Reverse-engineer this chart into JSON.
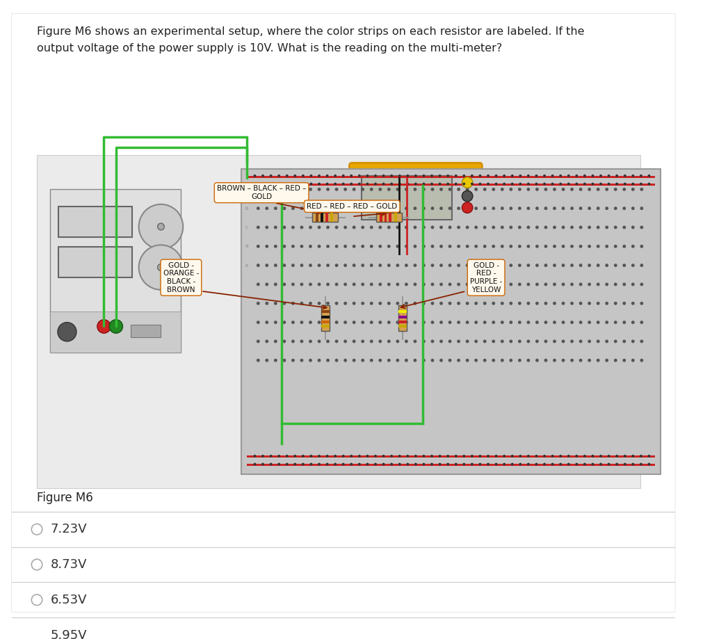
{
  "bg_color": "#ffffff",
  "question_text_line1": "Figure M6 shows an experimental setup, where the color strips on each resistor are labeled. If the",
  "question_text_line2": "output voltage of the power supply is 10V. What is the reading on the multi-meter?",
  "figure_label": "Figure M6",
  "options": [
    "7.23V",
    "8.73V",
    "6.53V",
    "5.95V"
  ],
  "option_text_color": "#333333",
  "separator_color": "#cccccc",
  "panel_bg": "#e8e8e8",
  "bb_bg": "#cccccc",
  "label_top_left": "BROWN – BLACK – RED –\nGOLD",
  "label_top_center": "RED – RED – RED – GOLD",
  "label_left_mid": "GOLD -\nORANGE -\nBLACK -\nBROWN",
  "label_right_mid": "GOLD -\nRED -\nPURPLE -\nYELLOW"
}
